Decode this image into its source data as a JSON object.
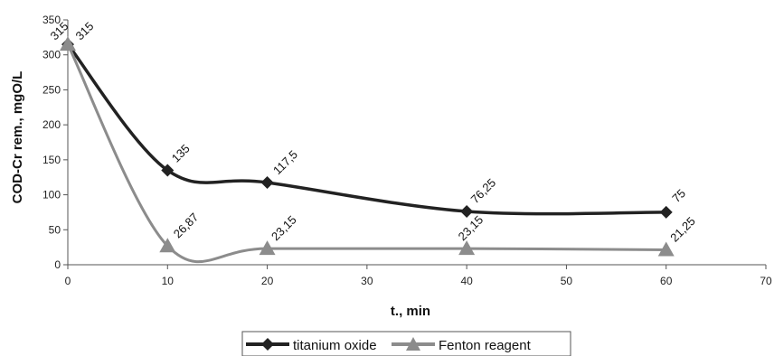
{
  "chart_data": {
    "type": "line",
    "xlabel": "t., min",
    "ylabel": "COD-Cr rem., mgO/L",
    "xlim": [
      0,
      70
    ],
    "ylim": [
      0,
      350
    ],
    "x_ticks": [
      0,
      10,
      20,
      30,
      40,
      50,
      60,
      70
    ],
    "y_ticks": [
      0,
      50,
      100,
      150,
      200,
      250,
      300,
      350
    ],
    "grid": false,
    "legend_position": "bottom",
    "series": [
      {
        "name": "titanium oxide",
        "color": "#222222",
        "marker": "diamond",
        "x": [
          0,
          10,
          20,
          40,
          60
        ],
        "y": [
          315,
          135,
          117.5,
          76.25,
          75
        ],
        "labels": [
          "315",
          "135",
          "117,5",
          "76,25",
          "75"
        ]
      },
      {
        "name": "Fenton reagent",
        "color": "#8c8c8c",
        "marker": "triangle",
        "x": [
          0,
          10,
          20,
          40,
          60
        ],
        "y": [
          315,
          26.87,
          23.15,
          23.15,
          21.25
        ],
        "labels": [
          "315",
          "26,87",
          "23,15",
          "23,15",
          "21,25"
        ]
      }
    ]
  }
}
